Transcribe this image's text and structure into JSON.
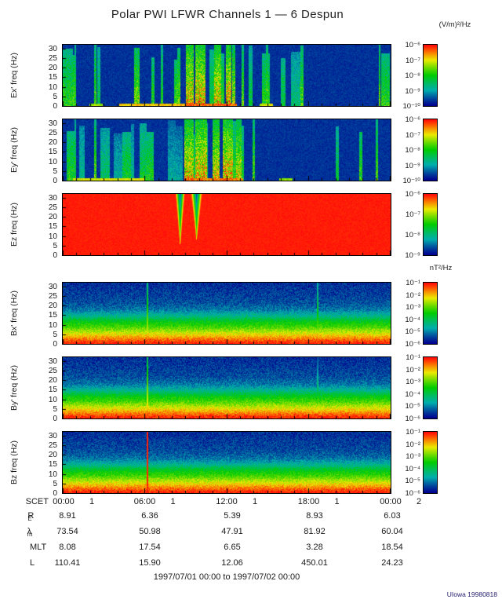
{
  "page": {
    "title": "Polar PWI LFWR Channels 1 — 6 Despun",
    "date_range": "1997/07/01 00:00 to 1997/07/02 00:00",
    "credit": "UIowa 19980818"
  },
  "chart_data": {
    "type": "heatmap",
    "title": "Polar PWI LFWR Channels 1 — 6 Despun",
    "x_axis": {
      "label": "SCET",
      "start": "1997/07/01 00:00",
      "end": "1997/07/02 00:00",
      "tick_times": [
        "00:00",
        "06:00",
        "12:00",
        "18:00",
        "00:00"
      ],
      "tick_days": [
        "1",
        "1",
        "1",
        "1",
        "2"
      ]
    },
    "y_axis": {
      "label": "freq (Hz)",
      "min": 0,
      "max": 32,
      "ticks": [
        "30",
        "25",
        "20",
        "15",
        "10",
        "5",
        "0"
      ]
    },
    "units": {
      "electric": "(V/m)²/Hz",
      "magnetic": "nT²/Hz"
    },
    "panels": [
      {
        "axis_label": "Ex' freq (Hz)",
        "kind": "electric",
        "units": "(V/m)²/Hz",
        "colorbar_ticks": [
          "10⁻⁶",
          "10⁻⁷",
          "10⁻⁸",
          "10⁻⁹",
          "10⁻¹⁰"
        ],
        "seed": 91031,
        "hot": [
          [
            0.036,
            0.041,
            0.62
          ],
          [
            0.098,
            0.104,
            0.68
          ],
          [
            0.3,
            0.307,
            0.62
          ],
          [
            0.376,
            0.401,
            0.95
          ],
          [
            0.406,
            0.437,
            0.97
          ],
          [
            0.462,
            0.484,
            0.92
          ],
          [
            0.498,
            0.516,
            0.97
          ],
          [
            0.519,
            0.528,
            0.82
          ],
          [
            0.546,
            0.553,
            0.72
          ],
          [
            0.62,
            0.628,
            0.7
          ],
          [
            0.965,
            0.971,
            0.72
          ]
        ],
        "bottom": [
          [
            0.08,
            0.12,
            0.72
          ],
          [
            0.17,
            0.375,
            0.88
          ],
          [
            0.376,
            0.53,
            0.98
          ],
          [
            0.6,
            0.64,
            0.8
          ]
        ]
      },
      {
        "axis_label": "Ey' freq (Hz)",
        "kind": "electric",
        "units": "(V/m)²/Hz",
        "colorbar_ticks": [
          "10⁻⁶",
          "10⁻⁷",
          "10⁻⁸",
          "10⁻⁹",
          "10⁻¹⁰"
        ],
        "seed": 4477,
        "hot": [
          [
            0.036,
            0.041,
            0.6
          ],
          [
            0.098,
            0.105,
            0.7
          ],
          [
            0.372,
            0.401,
            0.93
          ],
          [
            0.406,
            0.441,
            0.97
          ],
          [
            0.458,
            0.479,
            0.9
          ],
          [
            0.49,
            0.521,
            0.97
          ],
          [
            0.531,
            0.546,
            0.85
          ],
          [
            0.58,
            0.587,
            0.7
          ],
          [
            0.955,
            0.962,
            0.68
          ]
        ],
        "bottom": [
          [
            0.03,
            0.25,
            0.8
          ],
          [
            0.37,
            0.55,
            0.95
          ],
          [
            0.66,
            0.7,
            0.72
          ]
        ]
      },
      {
        "axis_label": "Ez freq (Hz)",
        "kind": "saturated",
        "units": "(V/m)²/Hz",
        "colorbar_ticks": [
          "10⁻⁶",
          "10⁻⁷",
          "10⁻⁸",
          "10⁻⁹"
        ],
        "seed": 7,
        "plumes": [
          {
            "x": 0.357,
            "w": 0.013,
            "depth": 0.82
          },
          {
            "x": 0.407,
            "w": 0.016,
            "depth": 0.74
          }
        ]
      },
      {
        "axis_label": "Bx' freq (Hz)",
        "kind": "magnetic",
        "units": "nT²/Hz",
        "colorbar_ticks": [
          "10⁻¹",
          "10⁻²",
          "10⁻³",
          "10⁻⁴",
          "10⁻⁵",
          "10⁻⁶"
        ],
        "seed": 1337,
        "lines": [
          {
            "x": 0.257,
            "t": 0.82,
            "grad": true
          },
          {
            "x": 0.776,
            "t": 0.74,
            "grad": true
          }
        ]
      },
      {
        "axis_label": "By' freq (Hz)",
        "kind": "magnetic",
        "units": "nT²/Hz",
        "colorbar_ticks": [
          "10⁻¹",
          "10⁻²",
          "10⁻³",
          "10⁻⁴",
          "10⁻⁵",
          "10⁻⁶"
        ],
        "seed": 2448,
        "lines": [
          {
            "x": 0.257,
            "t": 0.88,
            "grad": true
          },
          {
            "x": 0.776,
            "t": 0.62,
            "grad": true
          }
        ]
      },
      {
        "axis_label": "Bz freq (Hz)",
        "kind": "magnetic",
        "units": "nT²/Hz",
        "colorbar_ticks": [
          "10⁻¹",
          "10⁻²",
          "10⁻³",
          "10⁻⁴",
          "10⁻⁵",
          "10⁻⁶"
        ],
        "seed": 3559,
        "lines": [
          {
            "x": 0.257,
            "t": 0.97,
            "grad": false
          }
        ]
      }
    ],
    "ephemeris_rows": [
      {
        "label": "R",
        "sub": "E",
        "values": [
          "8.91",
          "6.36",
          "5.39",
          "8.93",
          "6.03"
        ]
      },
      {
        "label": "λ",
        "sub": "m",
        "values": [
          "73.54",
          "50.98",
          "47.91",
          "81.92",
          "60.04"
        ]
      },
      {
        "label": "MLT",
        "sub": "",
        "values": [
          "8.08",
          "17.54",
          "6.65",
          "3.28",
          "18.54"
        ]
      },
      {
        "label": "L",
        "sub": "",
        "values": [
          "110.41",
          "15.90",
          "12.06",
          "450.01",
          "24.23"
        ]
      }
    ]
  }
}
